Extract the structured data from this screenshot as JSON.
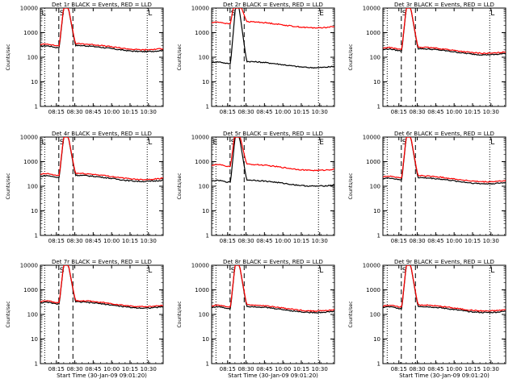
{
  "chart_data": [
    {
      "type": "line",
      "title": "Det 1r BLACK = Events, RED = LLD",
      "xlabel": "",
      "ylabel": "Counts/sec",
      "xticks": [
        "08:15",
        "08:30",
        "08:45",
        "10:00",
        "10:15",
        "10:30"
      ],
      "yticks": [
        "1",
        "10",
        "100",
        "1000",
        "10000"
      ],
      "ylim": [
        1,
        10000
      ],
      "yscale": "log",
      "markers": {
        "left": "L",
        "solid": "S",
        "right": "L"
      },
      "series": [
        {
          "name": "Events",
          "color": "#000000",
          "level": 270,
          "burst_label": "S"
        },
        {
          "name": "LLD",
          "color": "#ff0000",
          "level": 320
        }
      ]
    },
    {
      "type": "line",
      "title": "Det 2r BLACK = Events, RED = LLD",
      "xlabel": "",
      "ylabel": "Counts/sec",
      "xticks": [
        "08:15",
        "08:30",
        "08:45",
        "10:00",
        "10:15",
        "10:30"
      ],
      "yticks": [
        "1",
        "10",
        "100",
        "1000",
        "10000"
      ],
      "ylim": [
        1,
        10000
      ],
      "yscale": "log",
      "markers": {
        "left": "",
        "solid": "S",
        "right": "E"
      },
      "series": [
        {
          "name": "Events",
          "color": "#000000",
          "level": 60
        },
        {
          "name": "LLD",
          "color": "#ff0000",
          "level": 2500
        }
      ]
    },
    {
      "type": "line",
      "title": "Det 3r BLACK = Events, RED = LLD",
      "xlabel": "",
      "ylabel": "Counts/sec",
      "xticks": [
        "08:15",
        "08:30",
        "08:45",
        "10:00",
        "10:15",
        "10:30"
      ],
      "yticks": [
        "1",
        "10",
        "100",
        "1000",
        "10000"
      ],
      "ylim": [
        1,
        10000
      ],
      "yscale": "log",
      "markers": {
        "left": "",
        "solid": "S",
        "right": "L"
      },
      "series": [
        {
          "name": "Events",
          "color": "#000000",
          "level": 200
        },
        {
          "name": "LLD",
          "color": "#ff0000",
          "level": 230
        }
      ]
    },
    {
      "type": "line",
      "title": "Det 4r BLACK = Events, RED = LLD",
      "xlabel": "",
      "ylabel": "Counts/sec",
      "xticks": [
        "08:15",
        "08:30",
        "08:45",
        "10:00",
        "10:15",
        "10:30"
      ],
      "yticks": [
        "1",
        "10",
        "100",
        "1000",
        "10000"
      ],
      "ylim": [
        1,
        10000
      ],
      "yscale": "log",
      "markers": {
        "left": "L",
        "solid": "S",
        "right": "L"
      },
      "series": [
        {
          "name": "Events",
          "color": "#000000",
          "level": 250
        },
        {
          "name": "LLD",
          "color": "#ff0000",
          "level": 300
        }
      ]
    },
    {
      "type": "line",
      "title": "Det 5r BLACK = Events, RED = LLD",
      "xlabel": "",
      "ylabel": "Counts/sec",
      "xticks": [
        "08:15",
        "08:30",
        "08:45",
        "10:00",
        "10:15",
        "10:30"
      ],
      "yticks": [
        "1",
        "10",
        "100",
        "1000",
        "10000"
      ],
      "ylim": [
        1,
        10000
      ],
      "yscale": "log",
      "markers": {
        "left": "E",
        "solid": "S",
        "right": "E"
      },
      "series": [
        {
          "name": "Events",
          "color": "#000000",
          "level": 160
        },
        {
          "name": "LLD",
          "color": "#ff0000",
          "level": 700
        }
      ]
    },
    {
      "type": "line",
      "title": "Det 6r BLACK = Events, RED = LLD",
      "xlabel": "",
      "ylabel": "Counts/sec",
      "xticks": [
        "08:15",
        "08:30",
        "08:45",
        "10:00",
        "10:15",
        "10:30"
      ],
      "yticks": [
        "1",
        "10",
        "100",
        "1000",
        "10000"
      ],
      "ylim": [
        1,
        10000
      ],
      "yscale": "log",
      "markers": {
        "left": "",
        "solid": "S",
        "right": "L"
      },
      "series": [
        {
          "name": "Events",
          "color": "#000000",
          "level": 200
        },
        {
          "name": "LLD",
          "color": "#ff0000",
          "level": 240
        }
      ]
    },
    {
      "type": "line",
      "title": "Det 7r BLACK = Events, RED = LLD",
      "xlabel": "Start Time (30-Jan-09 09:01:20)",
      "ylabel": "Counts/sec",
      "xticks": [
        "08:15",
        "08:30",
        "08:45",
        "10:00",
        "10:15",
        "10:30"
      ],
      "yticks": [
        "1",
        "10",
        "100",
        "1000",
        "10000"
      ],
      "ylim": [
        1,
        10000
      ],
      "yscale": "log",
      "markers": {
        "left": "",
        "solid": "S",
        "right": "L"
      },
      "series": [
        {
          "name": "Events",
          "color": "#000000",
          "level": 290
        },
        {
          "name": "LLD",
          "color": "#ff0000",
          "level": 330
        }
      ]
    },
    {
      "type": "line",
      "title": "Det 8r BLACK = Events, RED = LLD",
      "xlabel": "Start Time (30-Jan-09 09:01:20)",
      "ylabel": "Counts/sec",
      "xticks": [
        "08:15",
        "08:30",
        "08:45",
        "10:00",
        "10:15",
        "10:30"
      ],
      "yticks": [
        "1",
        "10",
        "100",
        "1000",
        "10000"
      ],
      "ylim": [
        1,
        10000
      ],
      "yscale": "log",
      "markers": {
        "left": "",
        "solid": "S",
        "right": "L"
      },
      "series": [
        {
          "name": "Events",
          "color": "#000000",
          "level": 190
        },
        {
          "name": "LLD",
          "color": "#ff0000",
          "level": 220
        }
      ]
    },
    {
      "type": "line",
      "title": "Det 9r BLACK = Events, RED = LLD",
      "xlabel": "Start Time (30-Jan-09 09:01:20)",
      "ylabel": "Counts/sec",
      "xticks": [
        "08:15",
        "08:30",
        "08:45",
        "10:00",
        "10:15",
        "10:30"
      ],
      "yticks": [
        "1",
        "10",
        "100",
        "1000",
        "10000"
      ],
      "ylim": [
        1,
        10000
      ],
      "yscale": "log",
      "markers": {
        "left": "",
        "solid": "S",
        "right": "L"
      },
      "series": [
        {
          "name": "Events",
          "color": "#000000",
          "level": 190
        },
        {
          "name": "LLD",
          "color": "#ff0000",
          "level": 220
        }
      ]
    }
  ]
}
